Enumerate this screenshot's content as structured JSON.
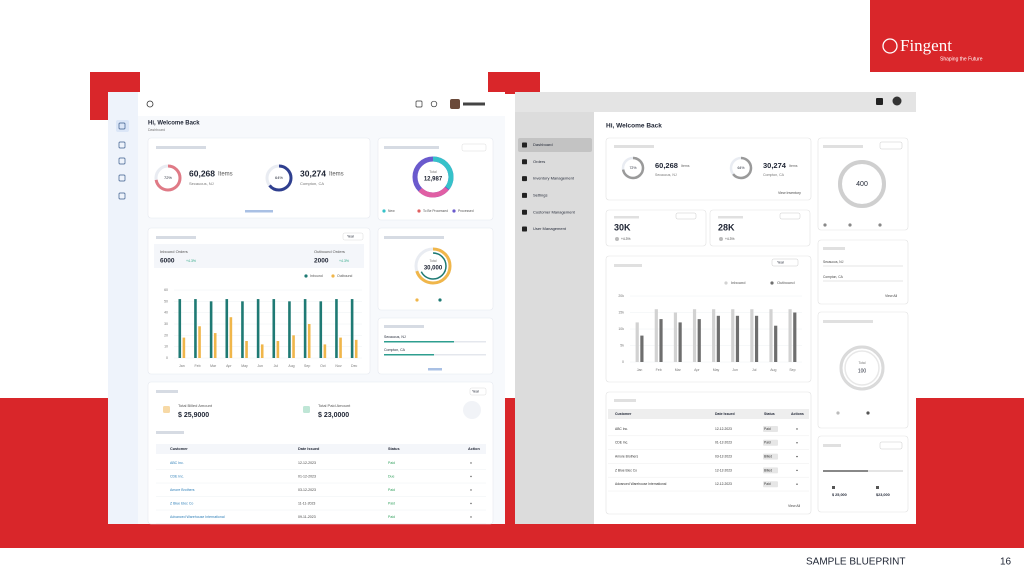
{
  "slide": {
    "brand": "Fingent",
    "tagline": "Shaping the Future",
    "footer": "SAMPLE BLUEPRINT",
    "page_number": "16"
  },
  "left_dashboard": {
    "greeting": "Hi, Welcome Back",
    "subtitle": "Dashboard",
    "warehouses": [
      {
        "percent": "72%",
        "count": "60,268",
        "unit": "Items",
        "location": "Secaucus, NJ"
      },
      {
        "percent": "64%",
        "count": "30,274",
        "unit": "Items",
        "location": "Compton, CA"
      }
    ],
    "orders_donut": {
      "label": "Total",
      "value": "12,987",
      "legend": [
        "New",
        "To Be Processed",
        "Processed"
      ]
    },
    "capacity_donut": {
      "label": "Total",
      "value": "30,000"
    },
    "locations": [
      "Secaucus, NJ",
      "Compton, CA"
    ],
    "order_summary": {
      "inbound_label": "Inbound Orders",
      "inbound_value": "6000",
      "inbound_change": "+4.3%",
      "outbound_label": "Outbound Orders",
      "outbound_value": "2000",
      "outbound_change": "+4.3%",
      "period": "Year"
    },
    "chart_data": {
      "type": "bar",
      "categories": [
        "Jan",
        "Feb",
        "Mar",
        "Apr",
        "May",
        "Jun",
        "Jul",
        "Aug",
        "Sep",
        "Oct",
        "Nov",
        "Dec"
      ],
      "series": [
        {
          "name": "Inbound",
          "color": "#1f7a74",
          "values": [
            52,
            52,
            50,
            52,
            50,
            52,
            52,
            50,
            52,
            50,
            52,
            52
          ]
        },
        {
          "name": "Outbound",
          "color": "#f0b64a",
          "values": [
            18,
            28,
            22,
            36,
            15,
            12,
            15,
            20,
            30,
            12,
            18,
            16
          ]
        }
      ],
      "ylim": [
        0,
        60
      ],
      "yticks": [
        0,
        10,
        20,
        30,
        40,
        50,
        60
      ],
      "grid": true
    },
    "billing": {
      "billed_label": "Total Billed Amount",
      "billed_value": "$ 25,9000",
      "paid_label": "Total Paid Amount",
      "paid_value": "$ 23,0000",
      "period": "Year"
    },
    "table": {
      "headers": [
        "Customer",
        "Date Issued",
        "Status",
        "Action"
      ],
      "rows": [
        [
          "ABC Inc.",
          "12-12-2023",
          "Paid"
        ],
        [
          "CDE Inc.",
          "01-12-2023",
          "Due"
        ],
        [
          "Amore Brothers",
          "03-12-2023",
          "Paid"
        ],
        [
          "Z Blue Elec Co",
          "11-11-2023",
          "Paid"
        ],
        [
          "Advanced Warehouse International",
          "09-11-2023",
          "Paid"
        ]
      ]
    }
  },
  "right_dashboard": {
    "menu": [
      "Dashboard",
      "Orders",
      "Inventory Management",
      "Settings",
      "Customer Management",
      "User Management"
    ],
    "greeting": "Hi, Welcome Back",
    "warehouses": [
      {
        "percent": "72%",
        "count": "60,268",
        "unit": "Items",
        "location": "Secaucus, NJ"
      },
      {
        "percent": "64%",
        "count": "30,274",
        "unit": "Items",
        "location": "Compton, CA"
      }
    ],
    "view_inventory": "View Inventory",
    "kpis": [
      {
        "value": "30K",
        "change": "+4.3%"
      },
      {
        "value": "28K",
        "change": "+4.3%"
      }
    ],
    "orders_donut": {
      "value": "400"
    },
    "capacity_donut": {
      "label": "Total",
      "value": "100"
    },
    "locations": [
      "Secaucus, NJ",
      "Compton, CA"
    ],
    "chart_data": {
      "type": "bar",
      "period": "Year",
      "categories": [
        "Jan",
        "Feb",
        "Mar",
        "Apr",
        "May",
        "Jun",
        "Jul",
        "Aug",
        "Sep"
      ],
      "series": [
        {
          "name": "Inbound",
          "color": "#d2d2d2",
          "values": [
            12000,
            16000,
            15000,
            16000,
            16000,
            16000,
            16000,
            16000,
            16000
          ]
        },
        {
          "name": "Outbound",
          "color": "#6e6e6e",
          "values": [
            8000,
            13000,
            12000,
            13000,
            14000,
            14000,
            14000,
            11000,
            15000
          ]
        }
      ],
      "ylim": [
        0,
        20000
      ],
      "yticks": [
        0,
        {
          "value": 5000,
          "label": "5k"
        },
        {
          "value": 10000,
          "label": "10k"
        },
        {
          "value": 15000,
          "label": "15k"
        },
        {
          "value": 20000,
          "label": "20k"
        }
      ],
      "grid": true
    },
    "table": {
      "headers": [
        "Customer",
        "Date Issued",
        "Status",
        "Actions"
      ],
      "rows": [
        [
          "ABC Inc.",
          "12-12-2023",
          "Paid"
        ],
        [
          "CDE Inc.",
          "01-12-2023",
          "Paid"
        ],
        [
          "Amore Brothers",
          "03-12-2023",
          "Billed"
        ],
        [
          "Z Blue Elec Co",
          "12-12-2023",
          "Billed"
        ],
        [
          "Advanced Warehouse International",
          "12-12-2023",
          "Paid"
        ]
      ],
      "view_all": "View All"
    },
    "view_all": "View All",
    "amounts": [
      "$ 25,000",
      "$23,000"
    ]
  }
}
